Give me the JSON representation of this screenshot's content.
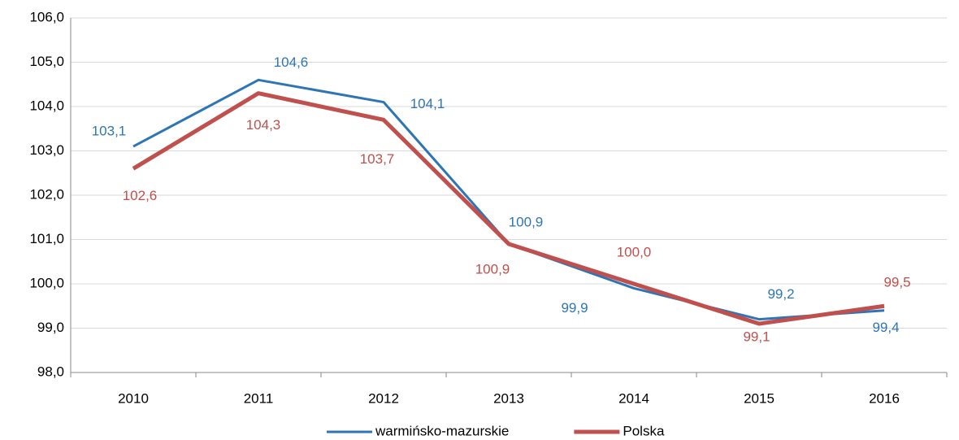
{
  "chart_data": {
    "type": "line",
    "categories": [
      "2010",
      "2011",
      "2012",
      "2013",
      "2014",
      "2015",
      "2016"
    ],
    "series": [
      {
        "name": "warmińsko-mazurskie",
        "color": "#2e75b6",
        "values": [
          103.1,
          104.6,
          104.1,
          100.9,
          99.9,
          99.2,
          99.4
        ],
        "value_labels": [
          "103,1",
          "104,6",
          "104,1",
          "100,9",
          "99,9",
          "99,2",
          "99,4"
        ]
      },
      {
        "name": "Polska",
        "color": "#c0504d",
        "values": [
          102.6,
          104.3,
          103.7,
          100.9,
          100.0,
          99.1,
          99.5
        ],
        "value_labels": [
          "102,6",
          "104,3",
          "103,7",
          "100,9",
          "100,0",
          "99,1",
          "99,5"
        ]
      }
    ],
    "ylim": [
      98,
      106
    ],
    "yticks": [
      {
        "value": 98,
        "label": "98,0"
      },
      {
        "value": 99,
        "label": "99,0"
      },
      {
        "value": 100,
        "label": "100,0"
      },
      {
        "value": 101,
        "label": "101,0"
      },
      {
        "value": 102,
        "label": "102,0"
      },
      {
        "value": 103,
        "label": "103,0"
      },
      {
        "value": 104,
        "label": "104,0"
      },
      {
        "value": 105,
        "label": "105,0"
      },
      {
        "value": 106,
        "label": "106,0"
      }
    ],
    "grid": true,
    "legend": "bottom"
  }
}
